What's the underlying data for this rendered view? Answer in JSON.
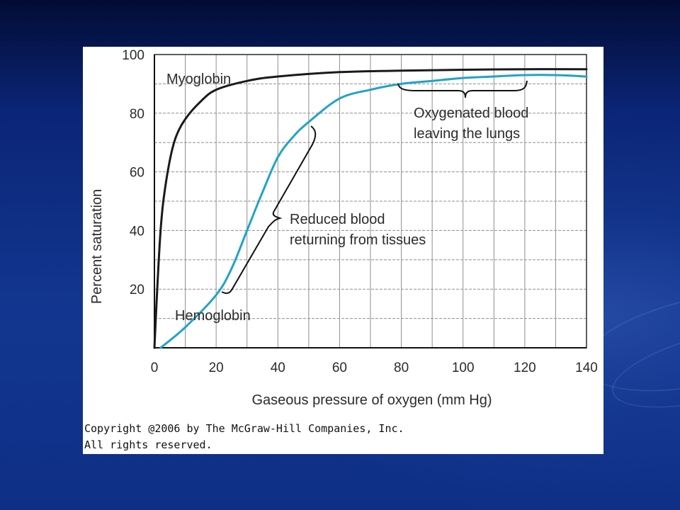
{
  "chart_data": {
    "type": "line",
    "title": "",
    "xlabel": "Gaseous pressure of oxygen (mm Hg)",
    "ylabel": "Percent saturation",
    "xlim": [
      0,
      140
    ],
    "ylim": [
      0,
      100
    ],
    "x_ticks": [
      0,
      20,
      40,
      60,
      80,
      100,
      120,
      140
    ],
    "y_ticks": [
      20,
      40,
      60,
      80,
      100
    ],
    "grid": true,
    "colors": {
      "myoglobin": "#1a1a1a",
      "hemoglobin": "#22a3c4"
    },
    "series": [
      {
        "name": "Myoglobin",
        "x": [
          0,
          1,
          2,
          3,
          5,
          7,
          10,
          15,
          20,
          30,
          40,
          60,
          80,
          100,
          120,
          140
        ],
        "y": [
          0,
          22,
          40,
          51,
          64,
          72,
          78,
          84,
          88,
          91,
          92.5,
          94,
          94.5,
          94.8,
          95,
          95
        ]
      },
      {
        "name": "Hemoglobin",
        "x": [
          2,
          10,
          20,
          25,
          30,
          35,
          40,
          45,
          50,
          60,
          70,
          80,
          90,
          100,
          110,
          120,
          130,
          140
        ],
        "y": [
          0,
          7,
          18,
          27,
          40,
          53,
          65,
          72,
          77,
          85,
          88,
          90,
          91,
          92,
          92.5,
          93,
          93,
          92.5
        ]
      }
    ],
    "annotations": [
      {
        "id": "oxygenated",
        "lines": [
          "Oxygenated blood",
          "leaving the lungs"
        ]
      },
      {
        "id": "reduced",
        "lines": [
          "Reduced blood",
          "returning from tissues"
        ]
      }
    ]
  },
  "footer": {
    "copyright_line1": "Copyright @2006 by The McGraw-Hill Companies, Inc.",
    "copyright_line2": "All rights reserved."
  }
}
